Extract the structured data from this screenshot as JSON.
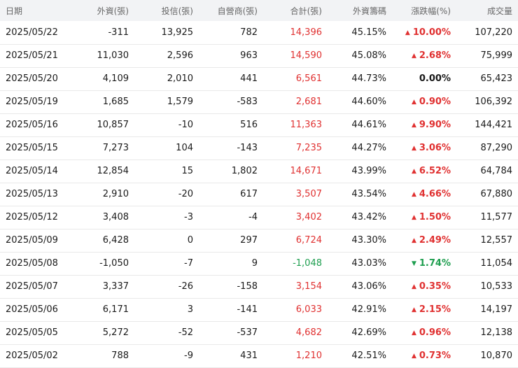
{
  "table": {
    "headers": [
      "日期",
      "外資(張)",
      "投信(張)",
      "自營商(張)",
      "合計(張)",
      "外資籌碼",
      "漲跌幅(%)",
      "成交量"
    ],
    "colors": {
      "up": "#e03131",
      "down": "#1e9e4f",
      "flat": "#1a1a1a"
    },
    "rows": [
      {
        "date": "2025/05/22",
        "foreign": "-311",
        "trust": "13,925",
        "dealer": "782",
        "total": "14,396",
        "total_dir": "up",
        "holding": "45.15%",
        "change": "10.00%",
        "change_dir": "up",
        "volume": "107,220"
      },
      {
        "date": "2025/05/21",
        "foreign": "11,030",
        "trust": "2,596",
        "dealer": "963",
        "total": "14,590",
        "total_dir": "up",
        "holding": "45.08%",
        "change": "2.68%",
        "change_dir": "up",
        "volume": "75,999"
      },
      {
        "date": "2025/05/20",
        "foreign": "4,109",
        "trust": "2,010",
        "dealer": "441",
        "total": "6,561",
        "total_dir": "up",
        "holding": "44.73%",
        "change": "0.00%",
        "change_dir": "flat",
        "volume": "65,423"
      },
      {
        "date": "2025/05/19",
        "foreign": "1,685",
        "trust": "1,579",
        "dealer": "-583",
        "total": "2,681",
        "total_dir": "up",
        "holding": "44.60%",
        "change": "0.90%",
        "change_dir": "up",
        "volume": "106,392"
      },
      {
        "date": "2025/05/16",
        "foreign": "10,857",
        "trust": "-10",
        "dealer": "516",
        "total": "11,363",
        "total_dir": "up",
        "holding": "44.61%",
        "change": "9.90%",
        "change_dir": "up",
        "volume": "144,421"
      },
      {
        "date": "2025/05/15",
        "foreign": "7,273",
        "trust": "104",
        "dealer": "-143",
        "total": "7,235",
        "total_dir": "up",
        "holding": "44.27%",
        "change": "3.06%",
        "change_dir": "up",
        "volume": "87,290"
      },
      {
        "date": "2025/05/14",
        "foreign": "12,854",
        "trust": "15",
        "dealer": "1,802",
        "total": "14,671",
        "total_dir": "up",
        "holding": "43.99%",
        "change": "6.52%",
        "change_dir": "up",
        "volume": "64,784"
      },
      {
        "date": "2025/05/13",
        "foreign": "2,910",
        "trust": "-20",
        "dealer": "617",
        "total": "3,507",
        "total_dir": "up",
        "holding": "43.54%",
        "change": "4.66%",
        "change_dir": "up",
        "volume": "67,880"
      },
      {
        "date": "2025/05/12",
        "foreign": "3,408",
        "trust": "-3",
        "dealer": "-4",
        "total": "3,402",
        "total_dir": "up",
        "holding": "43.42%",
        "change": "1.50%",
        "change_dir": "up",
        "volume": "11,577"
      },
      {
        "date": "2025/05/09",
        "foreign": "6,428",
        "trust": "0",
        "dealer": "297",
        "total": "6,724",
        "total_dir": "up",
        "holding": "43.30%",
        "change": "2.49%",
        "change_dir": "up",
        "volume": "12,557"
      },
      {
        "date": "2025/05/08",
        "foreign": "-1,050",
        "trust": "-7",
        "dealer": "9",
        "total": "-1,048",
        "total_dir": "down",
        "holding": "43.03%",
        "change": "1.74%",
        "change_dir": "down",
        "volume": "11,054"
      },
      {
        "date": "2025/05/07",
        "foreign": "3,337",
        "trust": "-26",
        "dealer": "-158",
        "total": "3,154",
        "total_dir": "up",
        "holding": "43.06%",
        "change": "0.35%",
        "change_dir": "up",
        "volume": "10,533"
      },
      {
        "date": "2025/05/06",
        "foreign": "6,171",
        "trust": "3",
        "dealer": "-141",
        "total": "6,033",
        "total_dir": "up",
        "holding": "42.91%",
        "change": "2.15%",
        "change_dir": "up",
        "volume": "14,197"
      },
      {
        "date": "2025/05/05",
        "foreign": "5,272",
        "trust": "-52",
        "dealer": "-537",
        "total": "4,682",
        "total_dir": "up",
        "holding": "42.69%",
        "change": "0.96%",
        "change_dir": "up",
        "volume": "12,138"
      },
      {
        "date": "2025/05/02",
        "foreign": "788",
        "trust": "-9",
        "dealer": "431",
        "total": "1,210",
        "total_dir": "up",
        "holding": "42.51%",
        "change": "0.73%",
        "change_dir": "up",
        "volume": "10,870"
      }
    ]
  }
}
